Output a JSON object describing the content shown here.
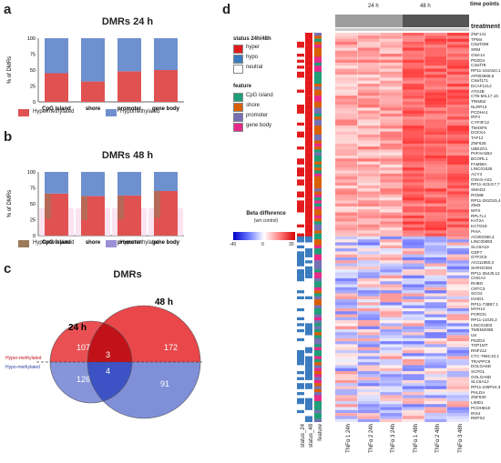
{
  "panels": {
    "a": {
      "label": "a"
    },
    "b": {
      "label": "b"
    },
    "c": {
      "label": "c"
    },
    "d": {
      "label": "d"
    }
  },
  "chart_data": [
    {
      "type": "bar",
      "title": "DMRs 24 h",
      "ylabel": "% of DMRs",
      "categories": [
        "CpG island",
        "shore",
        "promoter",
        "gene body"
      ],
      "ylim": [
        0,
        100
      ],
      "yticks": [
        "0",
        "25",
        "50",
        "75",
        "100"
      ],
      "series": [
        {
          "name": "Hypermethylated",
          "color": "#e05252",
          "values": [
            45,
            32,
            48,
            50
          ]
        },
        {
          "name": "Hypomethylated",
          "color": "#6f90cf",
          "values": [
            55,
            68,
            52,
            50
          ]
        }
      ]
    },
    {
      "type": "bar",
      "title": "DMRs 48 h",
      "ylabel": "% of DMRs",
      "categories": [
        "CpG island",
        "shore",
        "promoter",
        "gene body"
      ],
      "ylim": [
        0,
        100
      ],
      "yticks": [
        "0",
        "25",
        "50",
        "75",
        "100"
      ],
      "series": [
        {
          "name": "Hypermethylated",
          "color": "#e05252",
          "values": [
            66,
            62,
            63,
            70
          ]
        },
        {
          "name": "Hypomethylated",
          "color": "#6f90cf",
          "values": [
            34,
            38,
            37,
            30
          ]
        }
      ]
    },
    {
      "type": "venn",
      "title": "DMRs",
      "sets": [
        "24 h",
        "48 h"
      ],
      "labels": {
        "upper": "Hyper-methylated",
        "lower": "Hypo-methylated"
      },
      "values": {
        "hyper_24_only": 107,
        "hyper_both": 3,
        "hyper_48_only": 172,
        "hypo_24_only": 126,
        "hypo_both": 4,
        "hypo_48_only": 91
      }
    }
  ],
  "heatmap": {
    "time_points_label": "time points",
    "treatment_label": "treatment",
    "time_24": "24 h",
    "time_48": "48 h",
    "columns": [
      "TNFα 1 24h",
      "TNFα 2 24h",
      "TNFα 3 24h",
      "TNFα 1 48h",
      "TNFα 2 48h",
      "TNFα 3 48h"
    ],
    "annot_columns": [
      "status_24",
      "status_48",
      "feature"
    ],
    "status_title": "status 24h/48h",
    "status_items": [
      {
        "label": "hyper",
        "color": "#e31a1c"
      },
      {
        "label": "hypo",
        "color": "#3a7bbf"
      },
      {
        "label": "neutral",
        "color": "#ffffff"
      }
    ],
    "feature_title": "feature",
    "feature_items": [
      {
        "label": "CpG island",
        "color": "#1f9e77"
      },
      {
        "label": "shore",
        "color": "#d95f02"
      },
      {
        "label": "promoter",
        "color": "#7570b3"
      },
      {
        "label": "gene body",
        "color": "#e7298a"
      }
    ],
    "beta_title": "Beta difference",
    "beta_subtitle": "(wrt control)",
    "beta_ticks": [
      "-40",
      "0",
      "30"
    ],
    "genes": [
      "ZNF141",
      "TPM4",
      "C6orf40B",
      "SRM",
      "GNA14",
      "PDZD4",
      "C3orf78",
      "RP11-161N10,1",
      "AP003658,5",
      "C9orf171",
      "DCAF12L2",
      "ATG4B",
      "CTB-50L17,16",
      "TRIM62",
      "NLRP13",
      "PCDHA1",
      "IRF4",
      "CYP4F12",
      "TM4SF5",
      "DOCK4",
      "TAF12",
      "ZNF628",
      "UBE2G1",
      "PAFAH1B3",
      "BCORL1",
      "FAM58A",
      "LINC01535",
      "ACY3",
      "GNAS-AS1",
      "RP11-423J17,7",
      "SMAD2",
      "RGMB",
      "RP11-281D15,4",
      "ZIM3",
      "NFIX",
      "RPL7L1",
      "KAT2A",
      "KCTD19",
      "PHIA",
      "AC002366,4",
      "LINC00893",
      "SLC6A19",
      "GDF7",
      "GTF3C5",
      "AC011850,2",
      "SHROOM4",
      "RP11-354J5,12",
      "CNGA4",
      "RHBG",
      "CRTC3",
      "SCO2",
      "IGHD1",
      "RP11-738B7,1",
      "MYH14",
      "PORCN",
      "RP11-110J5,2",
      "LINC01503",
      "TMEM200B",
      "U8",
      "PDZD4",
      "TOP1MT",
      "RNF212",
      "CTC-786C10,1",
      "TRAPPC9",
      "DOLGA6D",
      "SCFD1",
      "GOLGA6D",
      "SLC6A12",
      "RP11-236P24,3",
      "PHLDA",
      "ZNF830",
      "LIMD1",
      "PCDHB15",
      "IRS4",
      "REPS2"
    ]
  }
}
